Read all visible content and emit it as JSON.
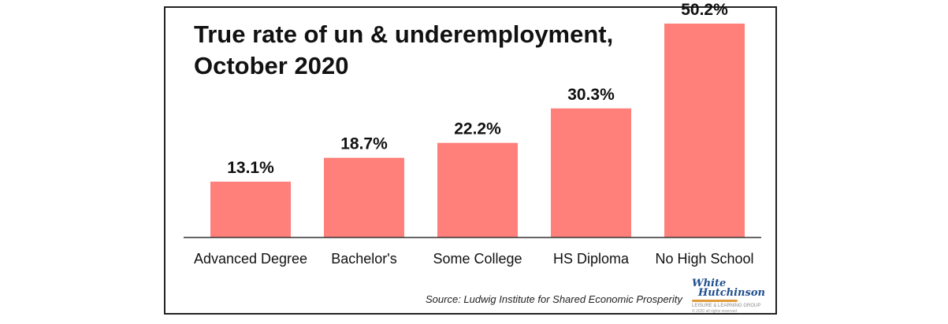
{
  "chart_data": {
    "type": "bar",
    "title_line1": "True rate of un & underemployment,",
    "title_line2": "October 2020",
    "categories": [
      "Advanced Degree",
      "Bachelor's",
      "Some College",
      "HS Diploma",
      "No High School"
    ],
    "values": [
      13.1,
      18.7,
      22.2,
      30.3,
      50.2
    ],
    "data_labels": [
      "13.1%",
      "18.7%",
      "22.2%",
      "30.3%",
      "50.2%"
    ],
    "xlabel": "",
    "ylabel": "",
    "ylim": [
      0,
      55
    ],
    "grid": false,
    "bar_color": "#ff7f7a"
  },
  "source": "Source: Ludwig Institute for Shared Economic Prosperity",
  "logo": {
    "line1": "White",
    "line2": "Hutchinson",
    "line3": "LEISURE & LEARNING GROUP",
    "line4": "© 2020 all rights reserved"
  }
}
